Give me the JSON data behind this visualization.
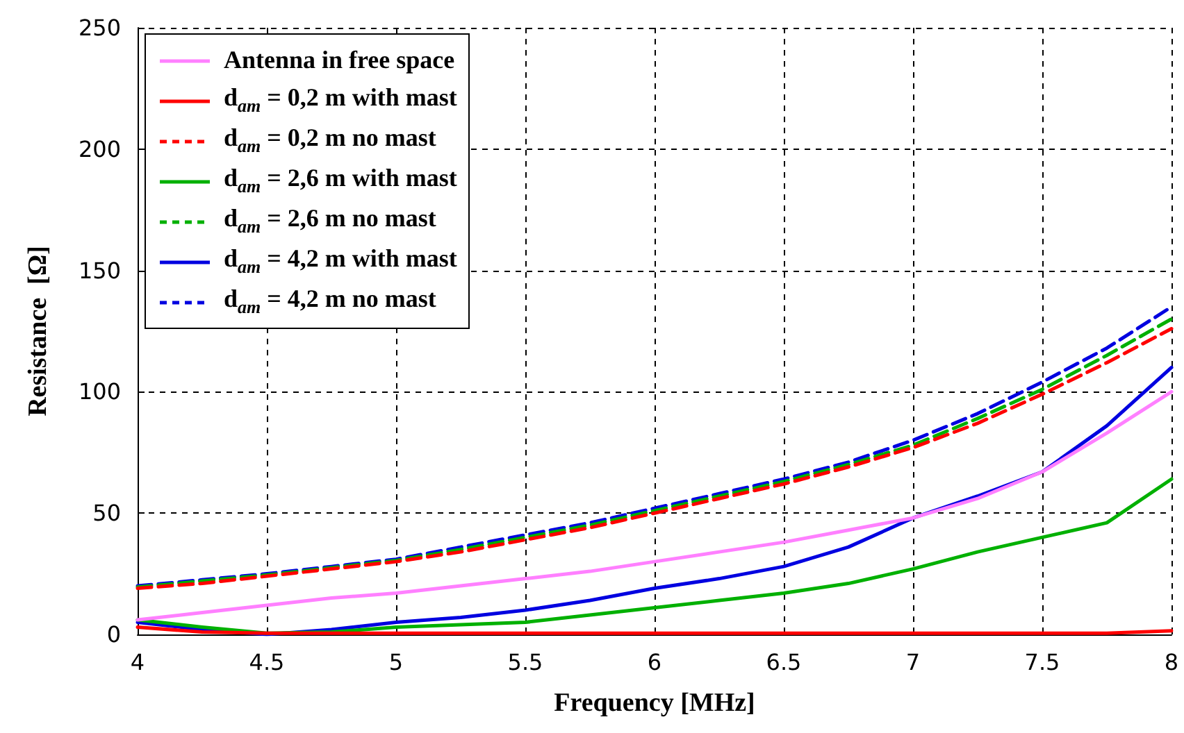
{
  "chart_data": {
    "type": "line",
    "xlabel": "Frequency [MHz]",
    "ylabel": "Resistance  [Ω]",
    "x": [
      4,
      4.25,
      4.5,
      4.75,
      5,
      5.25,
      5.5,
      5.75,
      6,
      6.25,
      6.5,
      6.75,
      7,
      7.25,
      7.5,
      7.75,
      8
    ],
    "xlim": [
      4,
      8
    ],
    "xticks": [
      4,
      4.5,
      5,
      5.5,
      6,
      6.5,
      7,
      7.5,
      8
    ],
    "ylim": [
      0,
      250
    ],
    "yticks": [
      0,
      50,
      100,
      150,
      200,
      250
    ],
    "grid": true,
    "legend": "top left",
    "marker": "none",
    "series": [
      {
        "name": "Antenna in free space",
        "color": "#ff80ff",
        "line_style": "solid",
        "values": [
          6,
          9,
          12,
          15,
          17,
          20,
          23,
          26,
          30,
          34,
          38,
          43,
          48,
          56,
          67,
          83,
          100
        ]
      },
      {
        "name": "d$_{am}$ = 0,2 m with mast",
        "color": "#ff0000",
        "line_style": "solid",
        "values": [
          3,
          1,
          0.5,
          0.5,
          0.5,
          0.5,
          0.5,
          0.5,
          0.5,
          0.5,
          0.5,
          0.5,
          0.5,
          0.5,
          0.5,
          0.5,
          1.5
        ]
      },
      {
        "name": "d$_{am}$ = 0,2 m no mast",
        "color": "#ff0000",
        "line_style": "dashed",
        "values": [
          19,
          21,
          24,
          27,
          30,
          34,
          39,
          44,
          50,
          56,
          62,
          69,
          77,
          87,
          99,
          112,
          126
        ]
      },
      {
        "name": "d$_{am}$ = 2,6 m with mast",
        "color": "#00b000",
        "line_style": "solid",
        "values": [
          6,
          3,
          0.5,
          1,
          3,
          4,
          5,
          8,
          11,
          14,
          17,
          21,
          27,
          34,
          40,
          46,
          64
        ]
      },
      {
        "name": "d$_{am}$ = 2,6 m no mast",
        "color": "#00b000",
        "line_style": "dashed",
        "values": [
          19.5,
          22,
          24.5,
          27.5,
          30.5,
          35,
          40,
          45,
          51,
          57,
          63,
          70,
          78,
          89,
          101,
          115,
          130
        ]
      },
      {
        "name": "d$_{am}$ = 4,2 m with mast",
        "color": "#0000e0",
        "line_style": "solid",
        "values": [
          5,
          2,
          0,
          2,
          5,
          7,
          10,
          14,
          19,
          23,
          28,
          36,
          48,
          57,
          67,
          86,
          110
        ]
      },
      {
        "name": "d$_{am}$ = 4,2 m no mast",
        "color": "#0000e0",
        "line_style": "dashed",
        "values": [
          20,
          22.5,
          25,
          28,
          31,
          36,
          41,
          46,
          52,
          58,
          64,
          71,
          80,
          91,
          104,
          118,
          135
        ]
      }
    ]
  }
}
